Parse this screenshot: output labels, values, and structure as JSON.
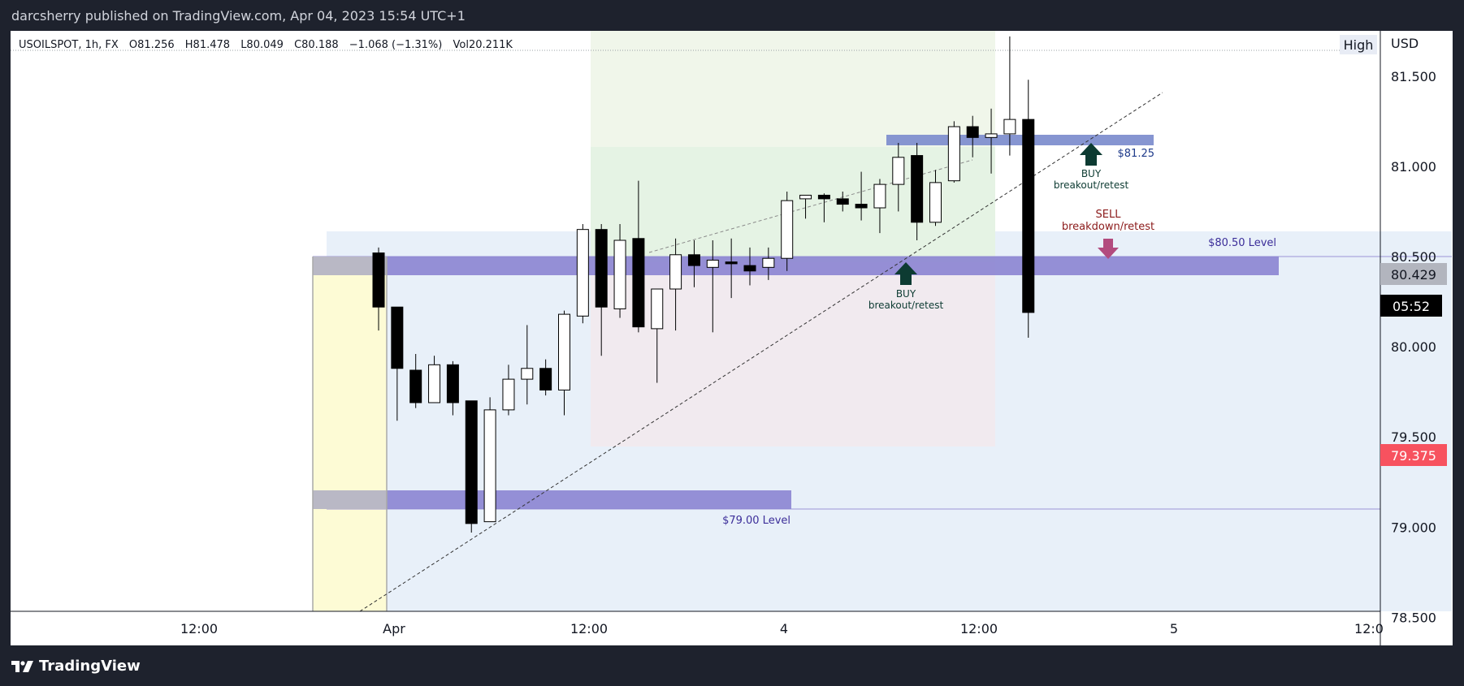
{
  "header": {
    "published_by": "darcsherry published on TradingView.com, Apr 04, 2023 15:54 UTC+1"
  },
  "footer": {
    "brand": "TradingView"
  },
  "legend": {
    "symbol": "USOILSPOT, 1h, FX",
    "open": "O81.256",
    "high": "H81.478",
    "low": "L80.049",
    "close": "C80.188",
    "change": "−1.068 (−1.31%)",
    "volume": "Vol20.211K"
  },
  "high_button": "High",
  "currency": "USD",
  "price_labels": {
    "current": "80.429",
    "countdown": "05:52",
    "low_marker": "79.375"
  },
  "annotations": {
    "buy1_line1": "BUY",
    "buy1_line2": "breakout/retest",
    "buy2_line1": "BUY",
    "buy2_line2": "breakout/retest",
    "sell_line1": "SELL",
    "sell_line2": "breakdown/retest",
    "level_8125": "$81.25",
    "level_8050": "$80.50 Level",
    "level_7900": "$79.00 Level"
  },
  "colors": {
    "bull_body": "#ffffff",
    "bear_body": "#000000",
    "zone": "#7b72c6",
    "buy_arrow": "#0d3b32",
    "sell_arrow": "#b24b7e",
    "sell_text": "#8b1a1a",
    "countdown_bg": "#000000",
    "low_marker_bg": "#f7525f"
  },
  "chart_data": {
    "type": "candlestick",
    "symbol": "USOILSPOT",
    "interval": "1h",
    "ylim": [
      78.5,
      81.6
    ],
    "y_ticks": [
      "81.500",
      "81.000",
      "80.500",
      "80.000",
      "79.500",
      "79.000",
      "78.500"
    ],
    "x_ticks": [
      "12:00",
      "Apr",
      "12:00",
      "4",
      "12:00",
      "5",
      "12:0"
    ],
    "candles": [
      {
        "o": 80.52,
        "h": 80.55,
        "l": 80.09,
        "c": 80.22
      },
      {
        "o": 80.22,
        "h": 80.22,
        "l": 79.59,
        "c": 79.88
      },
      {
        "o": 79.87,
        "h": 79.96,
        "l": 79.66,
        "c": 79.69
      },
      {
        "o": 79.69,
        "h": 79.95,
        "l": 79.69,
        "c": 79.9
      },
      {
        "o": 79.9,
        "h": 79.92,
        "l": 79.62,
        "c": 79.69
      },
      {
        "o": 79.7,
        "h": 79.7,
        "l": 78.97,
        "c": 79.02
      },
      {
        "o": 79.03,
        "h": 79.72,
        "l": 79.03,
        "c": 79.65
      },
      {
        "o": 79.65,
        "h": 79.9,
        "l": 79.62,
        "c": 79.82
      },
      {
        "o": 79.82,
        "h": 80.12,
        "l": 79.68,
        "c": 79.88
      },
      {
        "o": 79.88,
        "h": 79.93,
        "l": 79.73,
        "c": 79.76
      },
      {
        "o": 79.76,
        "h": 80.2,
        "l": 79.62,
        "c": 80.18
      },
      {
        "o": 80.17,
        "h": 80.68,
        "l": 80.13,
        "c": 80.65
      },
      {
        "o": 80.65,
        "h": 80.68,
        "l": 79.95,
        "c": 80.22
      },
      {
        "o": 80.21,
        "h": 80.68,
        "l": 80.16,
        "c": 80.59
      },
      {
        "o": 80.6,
        "h": 80.92,
        "l": 80.08,
        "c": 80.11
      },
      {
        "o": 80.1,
        "h": 80.32,
        "l": 79.8,
        "c": 80.32
      },
      {
        "o": 80.32,
        "h": 80.6,
        "l": 80.09,
        "c": 80.51
      },
      {
        "o": 80.51,
        "h": 80.59,
        "l": 80.33,
        "c": 80.45
      },
      {
        "o": 80.44,
        "h": 80.59,
        "l": 80.08,
        "c": 80.48
      },
      {
        "o": 80.47,
        "h": 80.6,
        "l": 80.27,
        "c": 80.46
      },
      {
        "o": 80.45,
        "h": 80.55,
        "l": 80.34,
        "c": 80.42
      },
      {
        "o": 80.44,
        "h": 80.55,
        "l": 80.37,
        "c": 80.49
      },
      {
        "o": 80.49,
        "h": 80.86,
        "l": 80.42,
        "c": 80.81
      },
      {
        "o": 80.82,
        "h": 80.83,
        "l": 80.71,
        "c": 80.84
      },
      {
        "o": 80.84,
        "h": 80.85,
        "l": 80.69,
        "c": 80.82
      },
      {
        "o": 80.82,
        "h": 80.86,
        "l": 80.75,
        "c": 80.79
      },
      {
        "o": 80.79,
        "h": 80.97,
        "l": 80.7,
        "c": 80.77
      },
      {
        "o": 80.77,
        "h": 80.93,
        "l": 80.63,
        "c": 80.9
      },
      {
        "o": 80.9,
        "h": 81.13,
        "l": 80.75,
        "c": 81.05
      },
      {
        "o": 81.06,
        "h": 81.13,
        "l": 80.59,
        "c": 80.69
      },
      {
        "o": 80.69,
        "h": 80.98,
        "l": 80.67,
        "c": 80.91
      },
      {
        "o": 80.92,
        "h": 81.25,
        "l": 80.91,
        "c": 81.22
      },
      {
        "o": 81.22,
        "h": 81.28,
        "l": 81.05,
        "c": 81.16
      },
      {
        "o": 81.16,
        "h": 81.32,
        "l": 80.96,
        "c": 81.18
      },
      {
        "o": 81.18,
        "h": 81.72,
        "l": 81.06,
        "c": 81.26
      },
      {
        "o": 81.26,
        "h": 81.48,
        "l": 80.05,
        "c": 80.19
      }
    ],
    "levels": [
      {
        "label": "$81.25",
        "price": 81.25
      },
      {
        "label": "$80.50 Level",
        "price": 80.5
      },
      {
        "label": "$79.00 Level",
        "price": 79.0
      }
    ]
  }
}
